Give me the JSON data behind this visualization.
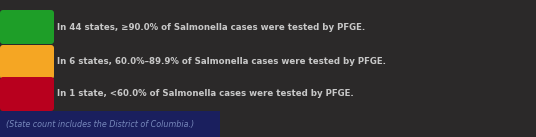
{
  "items": [
    {
      "color": "#1e9e28",
      "label": "In 44 states, ≥90.0% of Salmonella cases were tested by PFGE."
    },
    {
      "color": "#f5a623",
      "label": "In 6 states, 60.0%–89.9% of Salmonella cases were tested by PFGE."
    },
    {
      "color": "#b8001e",
      "label": "In 1 state, <60.0% of Salmonella cases were tested by PFGE."
    }
  ],
  "footnote": "(State count includes the District of Columbia.)",
  "bg_color": "#2b2929",
  "text_color": "#c8c8c8",
  "footnote_color": "#7788bb",
  "footnote_bg": "#1a1f5e",
  "fig_width": 5.36,
  "fig_height": 1.37,
  "dpi": 100
}
